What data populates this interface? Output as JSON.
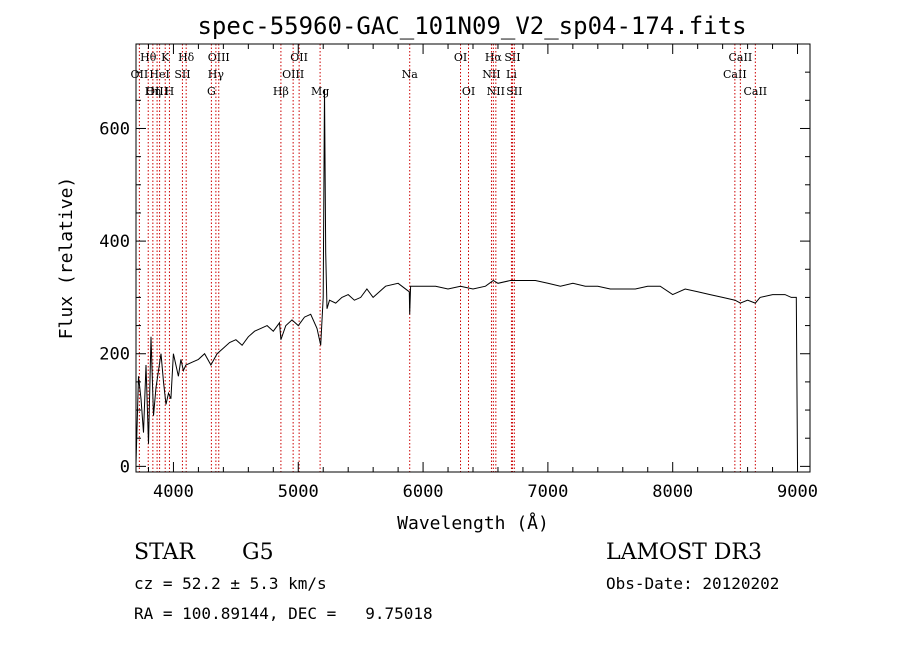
{
  "chart_data": {
    "type": "line",
    "title": "spec-55960-GAC_101N09_V2_sp04-174.fits",
    "xlabel": "Wavelength (Å)",
    "ylabel": "Flux (relative)",
    "xlim": [
      3700,
      9100
    ],
    "ylim": [
      -10,
      750
    ],
    "x_ticks": [
      4000,
      5000,
      6000,
      7000,
      8000,
      9000
    ],
    "y_ticks": [
      0,
      200,
      400,
      600
    ],
    "grid": false,
    "line_color": "#000000",
    "marker_color": "#cc0000",
    "series": [
      {
        "x": [
          3700,
          3720,
          3740,
          3760,
          3780,
          3800,
          3820,
          3840,
          3860,
          3880,
          3900,
          3920,
          3940,
          3960,
          3980,
          4000,
          4020,
          4040,
          4060,
          4080,
          4100,
          4150,
          4200,
          4250,
          4300,
          4350,
          4400,
          4450,
          4500,
          4550,
          4600,
          4650,
          4700,
          4750,
          4800,
          4850,
          4861,
          4900,
          4950,
          5000,
          5050,
          5100,
          5150,
          5180,
          5200,
          5210,
          5220,
          5230,
          5250,
          5300,
          5350,
          5400,
          5450,
          5500,
          5550,
          5600,
          5700,
          5800,
          5890,
          5893,
          5900,
          6000,
          6100,
          6200,
          6300,
          6400,
          6500,
          6563,
          6600,
          6700,
          6800,
          6900,
          7000,
          7100,
          7200,
          7300,
          7400,
          7500,
          7600,
          7700,
          7800,
          7900,
          8000,
          8100,
          8200,
          8300,
          8400,
          8500,
          8542,
          8600,
          8662,
          8700,
          8800,
          8900,
          8950,
          8990,
          9000
        ],
        "y": [
          5,
          160,
          120,
          60,
          180,
          40,
          230,
          90,
          140,
          170,
          200,
          150,
          110,
          130,
          120,
          200,
          180,
          160,
          190,
          170,
          180,
          185,
          190,
          200,
          180,
          200,
          210,
          220,
          225,
          215,
          230,
          240,
          245,
          250,
          240,
          255,
          225,
          250,
          260,
          250,
          265,
          270,
          245,
          215,
          300,
          670,
          380,
          280,
          295,
          290,
          300,
          305,
          295,
          300,
          315,
          300,
          320,
          325,
          310,
          270,
          320,
          320,
          320,
          315,
          320,
          315,
          320,
          330,
          325,
          330,
          330,
          330,
          325,
          320,
          325,
          320,
          320,
          315,
          315,
          315,
          320,
          320,
          305,
          315,
          310,
          305,
          300,
          295,
          290,
          295,
          290,
          300,
          305,
          305,
          300,
          300,
          5
        ]
      }
    ],
    "spectral_lines": [
      {
        "label": "Hθ",
        "w": 3798,
        "row": 1
      },
      {
        "label": "OII",
        "w": 3727,
        "row": 2
      },
      {
        "label": "OIII",
        "w": 3869,
        "row": 3
      },
      {
        "label": "K",
        "w": 3934,
        "row": 1
      },
      {
        "label": "HeI",
        "w": 3889,
        "row": 2
      },
      {
        "label": "Hη",
        "w": 3835,
        "row": 3
      },
      {
        "label": "H",
        "w": 3968,
        "row": 3
      },
      {
        "label": "Hδ",
        "w": 4102,
        "row": 1
      },
      {
        "label": "SII",
        "w": 4072,
        "row": 2
      },
      {
        "label": "OIII",
        "w": 4363,
        "row": 1
      },
      {
        "label": "Hγ",
        "w": 4340,
        "row": 2
      },
      {
        "label": "G",
        "w": 4304,
        "row": 3
      },
      {
        "label": "OII",
        "w": 5007,
        "row": 1
      },
      {
        "label": "OIII",
        "w": 4959,
        "row": 2
      },
      {
        "label": "Hβ",
        "w": 4861,
        "row": 3
      },
      {
        "label": "Mg",
        "w": 5175,
        "row": 3
      },
      {
        "label": "Na",
        "w": 5893,
        "row": 2
      },
      {
        "label": "OI",
        "w": 6300,
        "row": 1
      },
      {
        "label": "OI",
        "w": 6364,
        "row": 3
      },
      {
        "label": "Hα",
        "w": 6563,
        "row": 1
      },
      {
        "label": "NII",
        "w": 6548,
        "row": 2
      },
      {
        "label": "NII",
        "w": 6583,
        "row": 3
      },
      {
        "label": "SII",
        "w": 6716,
        "row": 1
      },
      {
        "label": "Li",
        "w": 6708,
        "row": 2
      },
      {
        "label": "SII",
        "w": 6731,
        "row": 3
      },
      {
        "label": "CaII",
        "w": 8542,
        "row": 1
      },
      {
        "label": "CaII",
        "w": 8498,
        "row": 2
      },
      {
        "label": "CaII",
        "w": 8662,
        "row": 3
      }
    ]
  },
  "info": {
    "class": "STAR",
    "subclass": "G5",
    "survey": "LAMOST DR3",
    "cz": "cz = 52.2 ± 5.3 km/s",
    "obs_date": "Obs-Date: 20120202",
    "coords": "RA = 100.89144, DEC =   9.75018"
  }
}
